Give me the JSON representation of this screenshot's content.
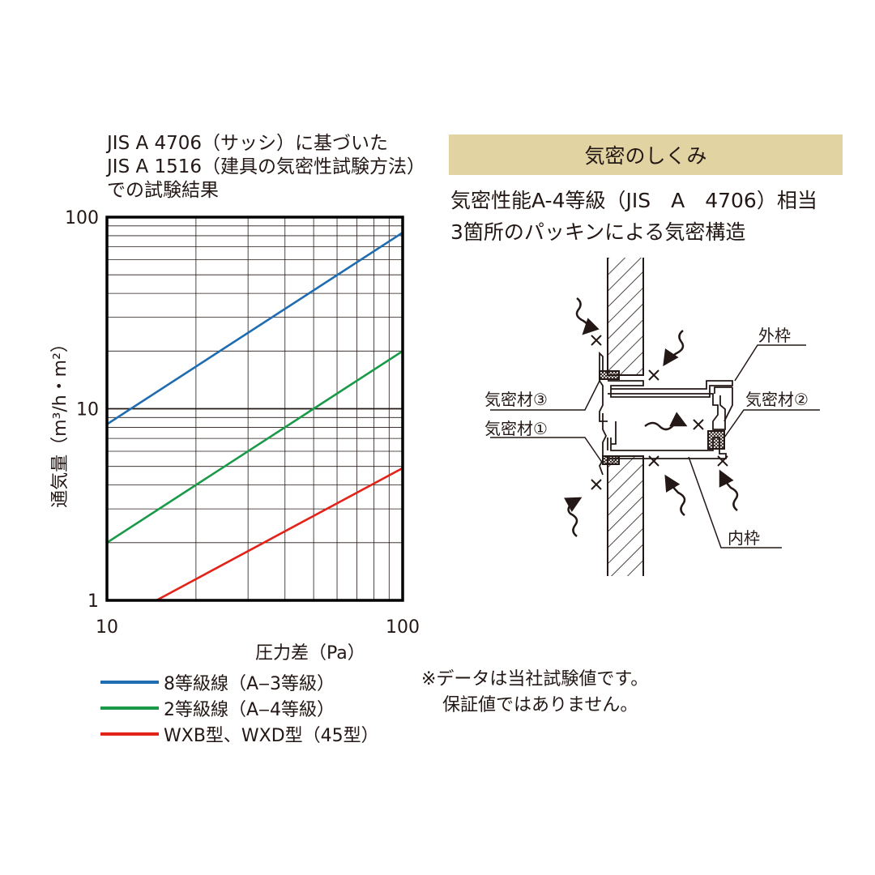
{
  "chart_title": {
    "line1": "JIS A 4706（サッシ）に基づいた",
    "line2": "JIS A 1516（建具の気密性試験方法）",
    "line3": "での試験結果"
  },
  "chart_data": {
    "type": "line",
    "x_scale": "log",
    "y_scale": "log",
    "xlim": [
      10,
      100
    ],
    "ylim": [
      1,
      100
    ],
    "x_ticks": [
      "10",
      "100"
    ],
    "y_ticks": [
      "1",
      "10",
      "100"
    ],
    "xlabel": "圧力差（Pa）",
    "ylabel": "通気量（m³/h・m²）",
    "grid": true,
    "legend_position": "bottom",
    "series": [
      {
        "name": "8等級線（A‒3等級）",
        "color": "#1f6cb0",
        "x": [
          10,
          100
        ],
        "y": [
          8.3,
          83
        ]
      },
      {
        "name": "2等級線（A‒4等級）",
        "color": "#1a9a48",
        "x": [
          10,
          100
        ],
        "y": [
          2.0,
          20
        ]
      },
      {
        "name": "WXB型、WXD型（45型）",
        "color": "#e2231a",
        "x": [
          14.7,
          100
        ],
        "y": [
          1.0,
          4.9
        ]
      }
    ]
  },
  "note": {
    "line1": "※データは当社試験値です。",
    "line2": "保証値ではありません。"
  },
  "mechanism": {
    "banner": "気密のしくみ",
    "desc1": "気密性能A-4等級（JIS　A　4706）相当",
    "desc2": "3箇所のパッキンによる気密構造",
    "label_outer_frame": "外枠",
    "label_inner_frame": "内枠",
    "label_seal1": "気密材①",
    "label_seal2": "気密材②",
    "label_seal3": "気密材③"
  },
  "colors": {
    "banner_bg": "#e2d4a2",
    "axis": "#000000",
    "grid": "#231815"
  }
}
